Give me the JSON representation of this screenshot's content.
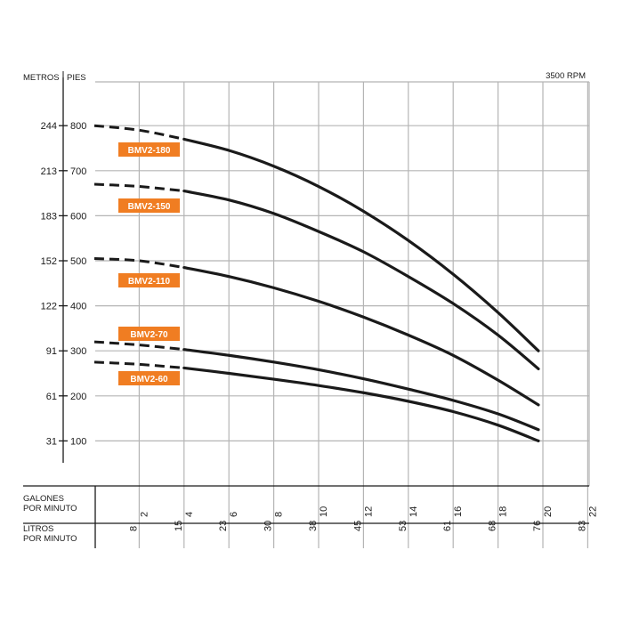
{
  "chart_data": {
    "type": "line",
    "rpm_label": "3500 RPM",
    "axis_titles": {
      "metros": "METROS",
      "pies": "PIES"
    },
    "y_range_feet": [
      0,
      800
    ],
    "y_ticks": [
      {
        "feet": 100,
        "meters": "31",
        "label": "100"
      },
      {
        "feet": 200,
        "meters": "61",
        "label": "200"
      },
      {
        "feet": 300,
        "meters": "91",
        "label": "300"
      },
      {
        "feet": 400,
        "meters": "122",
        "label": "400"
      },
      {
        "feet": 500,
        "meters": "152",
        "label": "500"
      },
      {
        "feet": 600,
        "meters": "183",
        "label": "600"
      },
      {
        "feet": 700,
        "meters": "213",
        "label": "700"
      },
      {
        "feet": 800,
        "meters": "244",
        "label": "800"
      }
    ],
    "x_range_gpm": [
      0,
      22
    ],
    "gpm_title": [
      "GALONES",
      "POR MINUTO"
    ],
    "lpm_title": [
      "LITROS",
      "POR MINUTO"
    ],
    "gpm_ticks": [
      "2",
      "4",
      "6",
      "8",
      "10",
      "12",
      "14",
      "16",
      "18",
      "20",
      "22"
    ],
    "lpm_ticks": [
      "8",
      "15",
      "23",
      "30",
      "38",
      "45",
      "53",
      "61",
      "68",
      "76",
      "83"
    ],
    "label_color": "#f07d22",
    "series": [
      {
        "name": "BMV2-180",
        "x": [
          0,
          2,
          4,
          6,
          8,
          10,
          12,
          14,
          16,
          18,
          19.8
        ],
        "y": [
          800,
          790,
          770,
          745,
          710,
          665,
          610,
          545,
          470,
          385,
          300
        ]
      },
      {
        "name": "BMV2-150",
        "x": [
          0,
          2,
          4,
          6,
          8,
          10,
          12,
          14,
          16,
          18,
          19.8
        ],
        "y": [
          670,
          665,
          655,
          635,
          605,
          565,
          520,
          465,
          405,
          335,
          260
        ]
      },
      {
        "name": "BMV2-110",
        "x": [
          0,
          2,
          4,
          6,
          8,
          10,
          12,
          14,
          16,
          18,
          19.8
        ],
        "y": [
          505,
          500,
          485,
          465,
          440,
          410,
          375,
          335,
          290,
          235,
          180
        ]
      },
      {
        "name": "BMV2-70",
        "x": [
          0,
          2,
          4,
          6,
          8,
          10,
          12,
          14,
          16,
          18,
          19.8
        ],
        "y": [
          320,
          313,
          303,
          290,
          275,
          258,
          238,
          215,
          190,
          160,
          125
        ]
      },
      {
        "name": "BMV2-60",
        "x": [
          0,
          2,
          4,
          6,
          8,
          10,
          12,
          14,
          16,
          18,
          19.8
        ],
        "y": [
          275,
          270,
          262,
          250,
          237,
          223,
          207,
          188,
          165,
          135,
          100
        ]
      }
    ]
  }
}
